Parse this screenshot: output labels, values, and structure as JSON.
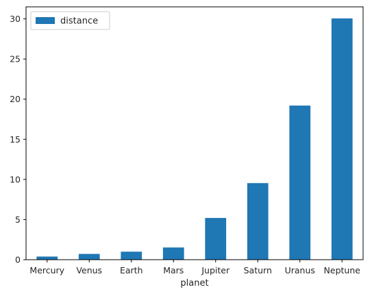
{
  "chart_data": {
    "type": "bar",
    "title": "",
    "xlabel": "planet",
    "ylabel": "",
    "categories": [
      "Mercury",
      "Venus",
      "Earth",
      "Mars",
      "Jupiter",
      "Saturn",
      "Uranus",
      "Neptune"
    ],
    "series": [
      {
        "name": "distance",
        "color": "#1f77b4",
        "values": [
          0.39,
          0.72,
          1.0,
          1.52,
          5.2,
          9.54,
          19.2,
          30.06
        ]
      }
    ],
    "ylim": [
      0,
      31.5
    ],
    "yticks": [
      "0",
      "5",
      "10",
      "15",
      "20",
      "25",
      "30"
    ],
    "grid": false,
    "legend": "top-left"
  }
}
